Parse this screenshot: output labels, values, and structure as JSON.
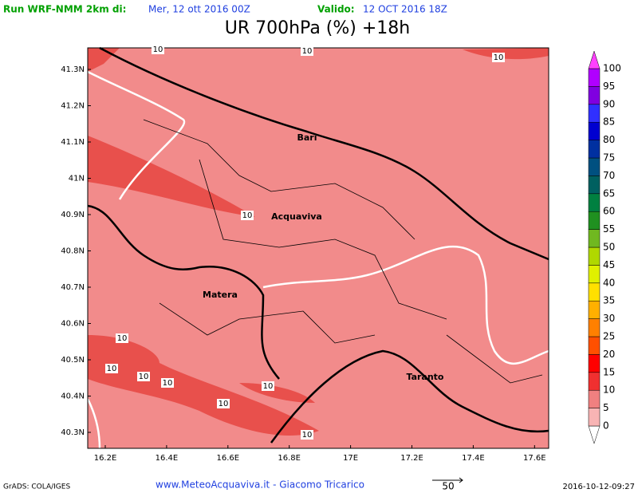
{
  "header": {
    "run_label": "Run WRF-NMM 2km di:",
    "run_date": "Mer, 12 ott 2016 00Z",
    "valid_label": "Valido:",
    "valid_date": "12 OCT 2016 18Z"
  },
  "title": "UR 700hPa (%) +18h",
  "map": {
    "lat_labels": [
      "41.3N",
      "41.2N",
      "41.1N",
      "41N",
      "40.9N",
      "40.8N",
      "40.7N",
      "40.6N",
      "40.5N",
      "40.4N",
      "40.3N"
    ],
    "lon_labels": [
      "16.2E",
      "16.4E",
      "16.6E",
      "16.8E",
      "17E",
      "17.2E",
      "17.4E",
      "17.6E"
    ],
    "places": [
      "Bari",
      "Acquaviva",
      "Matera",
      "Taranto"
    ],
    "contour_labels": [
      "10",
      "10",
      "10",
      "10",
      "10",
      "10",
      "10",
      "10",
      "10",
      "10",
      "10"
    ]
  },
  "colorbar": {
    "levels": [
      0,
      5,
      10,
      15,
      20,
      25,
      30,
      35,
      40,
      45,
      50,
      55,
      60,
      65,
      70,
      75,
      80,
      85,
      90,
      95,
      100
    ],
    "colors": [
      "#ffffff",
      "#f8b4b4",
      "#f08080",
      "#f03030",
      "#ff0000",
      "#ff5000",
      "#ff8000",
      "#ffb000",
      "#ffe000",
      "#e0f000",
      "#b0d800",
      "#70b820",
      "#209020",
      "#008040",
      "#006060",
      "#005080",
      "#0030a0",
      "#0000d0",
      "#3030ff",
      "#8000e0",
      "#b000ff",
      "#ff40ff"
    ]
  },
  "footer": {
    "software": "GrADS: COLA/IGES",
    "credit": "www.MeteoAcquaviva.it - Giacomo Tricarico",
    "vector_scale": "50",
    "timestamp": "2016-10-12-09:27"
  }
}
